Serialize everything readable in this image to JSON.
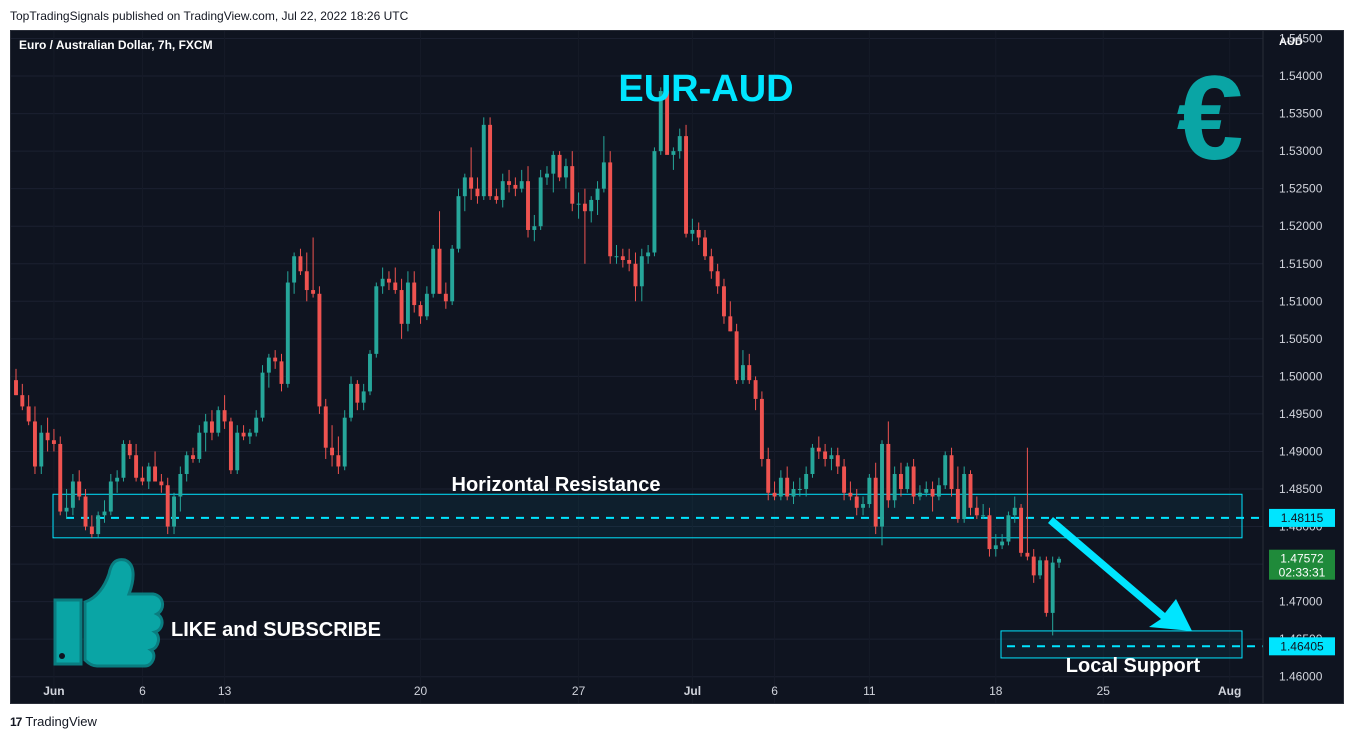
{
  "header": {
    "published_text": "TopTradingSignals published on TradingView.com, Jul 22, 2022 18:26 UTC"
  },
  "footer": {
    "brand": "TradingView",
    "logo_glyph": "17"
  },
  "colors": {
    "background": "#0f1420",
    "up": "#26a69a",
    "down": "#ef5350",
    "accent": "#00e5ff",
    "euro_logo": "#0aa5a5",
    "last_price_bg": "#1f8a3a"
  },
  "chart_data": {
    "type": "candlestick",
    "symbol_label": "Euro / Australian Dollar, 7h, FXCM",
    "title": "EUR-AUD",
    "currency_label": "AUD",
    "y_axis": {
      "ylim": [
        1.4565,
        1.546
      ],
      "ticks": [
        "1.46000",
        "1.46500",
        "1.47000",
        "1.47500",
        "1.48000",
        "1.48500",
        "1.49000",
        "1.49500",
        "1.50000",
        "1.50500",
        "1.51000",
        "1.51500",
        "1.52000",
        "1.52500",
        "1.53000",
        "1.53500",
        "1.54000",
        "1.54500"
      ]
    },
    "x_axis": {
      "ticks": [
        "Jun",
        "6",
        "13",
        "20",
        "27",
        "Jul",
        "6",
        "11",
        "18",
        "25",
        "Aug"
      ]
    },
    "resistance": {
      "label": "Horizontal Resistance",
      "level": 1.48115,
      "zone": [
        1.4785,
        1.4843
      ],
      "level_label": "1.48115"
    },
    "support": {
      "label": "Local Support",
      "level": 1.46405,
      "zone": [
        1.4625,
        1.4661
      ],
      "level_label": "1.46405"
    },
    "last_price": {
      "price": "1.47572",
      "countdown": "02:33:31"
    },
    "annotations": {
      "promo_text": "LIKE and SUBSCRIBE",
      "currency_symbol": "€"
    },
    "candles": [
      [
        1.4995,
        1.501,
        1.4975,
        1.4975
      ],
      [
        1.4975,
        1.499,
        1.4955,
        1.496
      ],
      [
        1.496,
        1.4975,
        1.4935,
        1.494
      ],
      [
        1.494,
        1.496,
        1.487,
        1.488
      ],
      [
        1.488,
        1.4935,
        1.487,
        1.4925
      ],
      [
        1.4925,
        1.4945,
        1.49,
        1.4915
      ],
      [
        1.4915,
        1.493,
        1.49,
        1.491
      ],
      [
        1.491,
        1.492,
        1.4815,
        1.482
      ],
      [
        1.482,
        1.485,
        1.481,
        1.4825
      ],
      [
        1.4825,
        1.487,
        1.4815,
        1.486
      ],
      [
        1.486,
        1.4875,
        1.4835,
        1.484
      ],
      [
        1.484,
        1.485,
        1.4795,
        1.48
      ],
      [
        1.48,
        1.4815,
        1.4785,
        1.479
      ],
      [
        1.479,
        1.482,
        1.4785,
        1.4815
      ],
      [
        1.4815,
        1.4835,
        1.4805,
        1.482
      ],
      [
        1.482,
        1.487,
        1.4815,
        1.486
      ],
      [
        1.486,
        1.4875,
        1.4845,
        1.4865
      ],
      [
        1.4865,
        1.4915,
        1.486,
        1.491
      ],
      [
        1.491,
        1.4915,
        1.489,
        1.4895
      ],
      [
        1.4895,
        1.491,
        1.486,
        1.4865
      ],
      [
        1.4865,
        1.488,
        1.4855,
        1.486
      ],
      [
        1.486,
        1.4885,
        1.485,
        1.488
      ],
      [
        1.488,
        1.49,
        1.486,
        1.486
      ],
      [
        1.486,
        1.487,
        1.4845,
        1.4855
      ],
      [
        1.4855,
        1.4865,
        1.479,
        1.48
      ],
      [
        1.48,
        1.4845,
        1.479,
        1.484
      ],
      [
        1.484,
        1.488,
        1.482,
        1.487
      ],
      [
        1.487,
        1.49,
        1.486,
        1.4895
      ],
      [
        1.4895,
        1.4905,
        1.4885,
        1.489
      ],
      [
        1.489,
        1.4935,
        1.4885,
        1.4925
      ],
      [
        1.4925,
        1.495,
        1.49,
        1.494
      ],
      [
        1.494,
        1.4955,
        1.4915,
        1.4925
      ],
      [
        1.4925,
        1.496,
        1.492,
        1.4955
      ],
      [
        1.4955,
        1.4975,
        1.493,
        1.494
      ],
      [
        1.494,
        1.4945,
        1.487,
        1.4875
      ],
      [
        1.4875,
        1.4935,
        1.487,
        1.4925
      ],
      [
        1.4925,
        1.4935,
        1.4915,
        1.492
      ],
      [
        1.492,
        1.493,
        1.491,
        1.4925
      ],
      [
        1.4925,
        1.4955,
        1.492,
        1.4945
      ],
      [
        1.4945,
        1.5015,
        1.494,
        1.5005
      ],
      [
        1.5005,
        1.503,
        1.4985,
        1.5025
      ],
      [
        1.5025,
        1.5035,
        1.501,
        1.502
      ],
      [
        1.502,
        1.503,
        1.498,
        1.499
      ],
      [
        1.499,
        1.514,
        1.4985,
        1.5125
      ],
      [
        1.5125,
        1.5165,
        1.511,
        1.516
      ],
      [
        1.516,
        1.517,
        1.5135,
        1.514
      ],
      [
        1.514,
        1.5165,
        1.51,
        1.5115
      ],
      [
        1.5115,
        1.5185,
        1.5105,
        1.511
      ],
      [
        1.511,
        1.512,
        1.495,
        1.496
      ],
      [
        1.496,
        1.497,
        1.489,
        1.4905
      ],
      [
        1.4905,
        1.4935,
        1.488,
        1.4895
      ],
      [
        1.4895,
        1.492,
        1.487,
        1.488
      ],
      [
        1.488,
        1.4955,
        1.4875,
        1.4945
      ],
      [
        1.4945,
        1.5,
        1.494,
        1.499
      ],
      [
        1.499,
        1.4995,
        1.4955,
        1.4965
      ],
      [
        1.4965,
        1.499,
        1.4955,
        1.498
      ],
      [
        1.498,
        1.5035,
        1.4975,
        1.503
      ],
      [
        1.503,
        1.5125,
        1.5025,
        1.512
      ],
      [
        1.512,
        1.5145,
        1.511,
        1.513
      ],
      [
        1.513,
        1.514,
        1.5115,
        1.5125
      ],
      [
        1.5125,
        1.5145,
        1.511,
        1.5115
      ],
      [
        1.5115,
        1.513,
        1.505,
        1.507
      ],
      [
        1.507,
        1.514,
        1.506,
        1.5125
      ],
      [
        1.5125,
        1.514,
        1.5085,
        1.5095
      ],
      [
        1.5095,
        1.51,
        1.507,
        1.508
      ],
      [
        1.508,
        1.512,
        1.5075,
        1.511
      ],
      [
        1.511,
        1.5175,
        1.5105,
        1.517
      ],
      [
        1.517,
        1.522,
        1.511,
        1.511
      ],
      [
        1.511,
        1.5125,
        1.509,
        1.51
      ],
      [
        1.51,
        1.5175,
        1.5095,
        1.517
      ],
      [
        1.517,
        1.525,
        1.5165,
        1.524
      ],
      [
        1.524,
        1.527,
        1.522,
        1.5265
      ],
      [
        1.5265,
        1.5305,
        1.5235,
        1.525
      ],
      [
        1.525,
        1.5265,
        1.523,
        1.524
      ],
      [
        1.524,
        1.5345,
        1.5235,
        1.5335
      ],
      [
        1.5335,
        1.5345,
        1.5235,
        1.524
      ],
      [
        1.524,
        1.525,
        1.523,
        1.5235
      ],
      [
        1.5235,
        1.527,
        1.5225,
        1.526
      ],
      [
        1.526,
        1.5275,
        1.5245,
        1.5255
      ],
      [
        1.5255,
        1.5265,
        1.524,
        1.525
      ],
      [
        1.525,
        1.5275,
        1.5245,
        1.526
      ],
      [
        1.526,
        1.528,
        1.5185,
        1.5195
      ],
      [
        1.5195,
        1.5215,
        1.518,
        1.52
      ],
      [
        1.52,
        1.5275,
        1.5195,
        1.5265
      ],
      [
        1.5265,
        1.528,
        1.5255,
        1.527
      ],
      [
        1.527,
        1.53,
        1.5245,
        1.5295
      ],
      [
        1.5295,
        1.53,
        1.526,
        1.5265
      ],
      [
        1.5265,
        1.529,
        1.525,
        1.528
      ],
      [
        1.528,
        1.53,
        1.522,
        1.523
      ],
      [
        1.523,
        1.5245,
        1.521,
        1.523
      ],
      [
        1.523,
        1.525,
        1.515,
        1.522
      ],
      [
        1.522,
        1.524,
        1.5205,
        1.5235
      ],
      [
        1.5235,
        1.526,
        1.5215,
        1.525
      ],
      [
        1.525,
        1.532,
        1.5245,
        1.5285
      ],
      [
        1.5285,
        1.53,
        1.515,
        1.516
      ],
      [
        1.516,
        1.5175,
        1.515,
        1.516
      ],
      [
        1.516,
        1.517,
        1.5145,
        1.5155
      ],
      [
        1.5155,
        1.517,
        1.514,
        1.515
      ],
      [
        1.515,
        1.5165,
        1.51,
        1.512
      ],
      [
        1.512,
        1.517,
        1.51,
        1.516
      ],
      [
        1.516,
        1.5175,
        1.515,
        1.5165
      ],
      [
        1.5165,
        1.5305,
        1.516,
        1.53
      ],
      [
        1.53,
        1.5385,
        1.5295,
        1.538
      ],
      [
        1.538,
        1.5385,
        1.53,
        1.5295
      ],
      [
        1.5295,
        1.5305,
        1.5275,
        1.53
      ],
      [
        1.53,
        1.533,
        1.529,
        1.532
      ],
      [
        1.532,
        1.5335,
        1.5185,
        1.519
      ],
      [
        1.519,
        1.521,
        1.518,
        1.5195
      ],
      [
        1.5195,
        1.5205,
        1.5175,
        1.5185
      ],
      [
        1.5185,
        1.5195,
        1.5155,
        1.516
      ],
      [
        1.516,
        1.517,
        1.513,
        1.514
      ],
      [
        1.514,
        1.515,
        1.511,
        1.512
      ],
      [
        1.512,
        1.513,
        1.507,
        1.508
      ],
      [
        1.508,
        1.51,
        1.506,
        1.506
      ],
      [
        1.506,
        1.507,
        1.499,
        1.4995
      ],
      [
        1.4995,
        1.5035,
        1.499,
        1.5015
      ],
      [
        1.5015,
        1.503,
        1.499,
        1.4995
      ],
      [
        1.4995,
        1.5,
        1.4955,
        1.497
      ],
      [
        1.497,
        1.498,
        1.488,
        1.489
      ],
      [
        1.489,
        1.4905,
        1.4835,
        1.4845
      ],
      [
        1.4845,
        1.486,
        1.4835,
        1.484
      ],
      [
        1.484,
        1.4875,
        1.4835,
        1.4865
      ],
      [
        1.4865,
        1.488,
        1.4835,
        1.484
      ],
      [
        1.484,
        1.486,
        1.483,
        1.485
      ],
      [
        1.485,
        1.4865,
        1.484,
        1.485
      ],
      [
        1.485,
        1.488,
        1.484,
        1.487
      ],
      [
        1.487,
        1.491,
        1.4865,
        1.4905
      ],
      [
        1.4905,
        1.492,
        1.489,
        1.49
      ],
      [
        1.49,
        1.491,
        1.488,
        1.489
      ],
      [
        1.489,
        1.4905,
        1.4875,
        1.4895
      ],
      [
        1.4895,
        1.4905,
        1.487,
        1.488
      ],
      [
        1.488,
        1.489,
        1.4835,
        1.4845
      ],
      [
        1.4845,
        1.486,
        1.4835,
        1.484
      ],
      [
        1.484,
        1.485,
        1.4815,
        1.4825
      ],
      [
        1.4825,
        1.484,
        1.4815,
        1.483
      ],
      [
        1.483,
        1.487,
        1.4825,
        1.4865
      ],
      [
        1.4865,
        1.4885,
        1.479,
        1.48
      ],
      [
        1.48,
        1.4915,
        1.4775,
        1.491
      ],
      [
        1.491,
        1.494,
        1.4825,
        1.4835
      ],
      [
        1.4835,
        1.488,
        1.4825,
        1.487
      ],
      [
        1.487,
        1.4885,
        1.484,
        1.485
      ],
      [
        1.485,
        1.4885,
        1.4845,
        1.488
      ],
      [
        1.488,
        1.489,
        1.483,
        1.484
      ],
      [
        1.484,
        1.4855,
        1.4835,
        1.4845
      ],
      [
        1.4845,
        1.486,
        1.484,
        1.485
      ],
      [
        1.485,
        1.486,
        1.482,
        1.484
      ],
      [
        1.484,
        1.4865,
        1.4835,
        1.4855
      ],
      [
        1.4855,
        1.49,
        1.485,
        1.4895
      ],
      [
        1.4895,
        1.4905,
        1.484,
        1.485
      ],
      [
        1.485,
        1.488,
        1.4805,
        1.481
      ],
      [
        1.481,
        1.488,
        1.4805,
        1.487
      ],
      [
        1.487,
        1.4875,
        1.4815,
        1.4825
      ],
      [
        1.4825,
        1.484,
        1.481,
        1.4815
      ],
      [
        1.4815,
        1.483,
        1.481,
        1.4815
      ],
      [
        1.4815,
        1.4825,
        1.476,
        1.477
      ],
      [
        1.477,
        1.479,
        1.476,
        1.4775
      ],
      [
        1.4775,
        1.479,
        1.477,
        1.478
      ],
      [
        1.478,
        1.482,
        1.4775,
        1.4815
      ],
      [
        1.4815,
        1.484,
        1.4805,
        1.4825
      ],
      [
        1.4825,
        1.483,
        1.476,
        1.4765
      ],
      [
        1.4765,
        1.4905,
        1.4755,
        1.476
      ],
      [
        1.476,
        1.477,
        1.4725,
        1.4735
      ],
      [
        1.4735,
        1.476,
        1.473,
        1.4755
      ],
      [
        1.4755,
        1.476,
        1.468,
        1.4685
      ],
      [
        1.4685,
        1.476,
        1.4655,
        1.4752
      ],
      [
        1.4752,
        1.476,
        1.4745,
        1.4757
      ]
    ]
  }
}
